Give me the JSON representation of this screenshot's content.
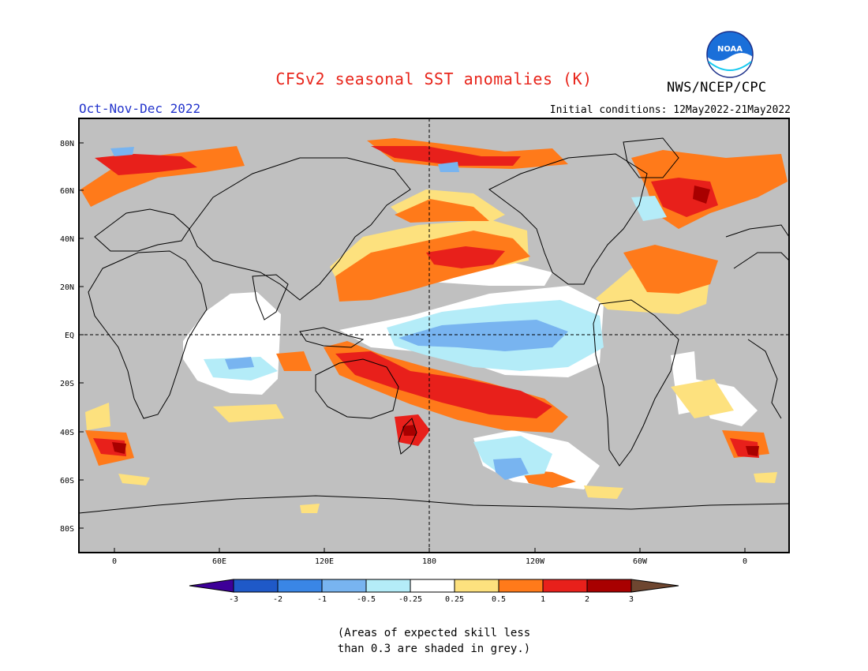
{
  "header": {
    "title": "CFSv2 seasonal SST anomalies (K)",
    "agency": "NWS/NCEP/CPC",
    "season": "Oct-Nov-Dec 2022",
    "initial_conditions": "Initial conditions: 12May2022-21May2022",
    "logo_text": "NOAA"
  },
  "map": {
    "lat_labels": [
      "80N",
      "60N",
      "40N",
      "20N",
      "EQ",
      "20S",
      "40S",
      "60S",
      "80S"
    ],
    "lon_labels": [
      "0",
      "60E",
      "120E",
      "180",
      "120W",
      "60W",
      "0"
    ],
    "colors": {
      "land_skill_grey": "#c0c0c0",
      "ocean_white": "#ffffff",
      "border": "#000000"
    }
  },
  "legend": {
    "ticks": [
      "-3",
      "-2",
      "-1",
      "-0.5",
      "-0.25",
      "0.25",
      "0.5",
      "1",
      "2",
      "3"
    ],
    "colors": [
      "#3d0098",
      "#1f59c8",
      "#3a86e6",
      "#78b4f0",
      "#b4ecf8",
      "#ffffff",
      "#fde17e",
      "#ff7a1a",
      "#e8201b",
      "#a80000",
      "#6e4630"
    ]
  },
  "footnote": {
    "line1": "(Areas of expected skill less",
    "line2": "than 0.3 are shaded in grey.)"
  }
}
